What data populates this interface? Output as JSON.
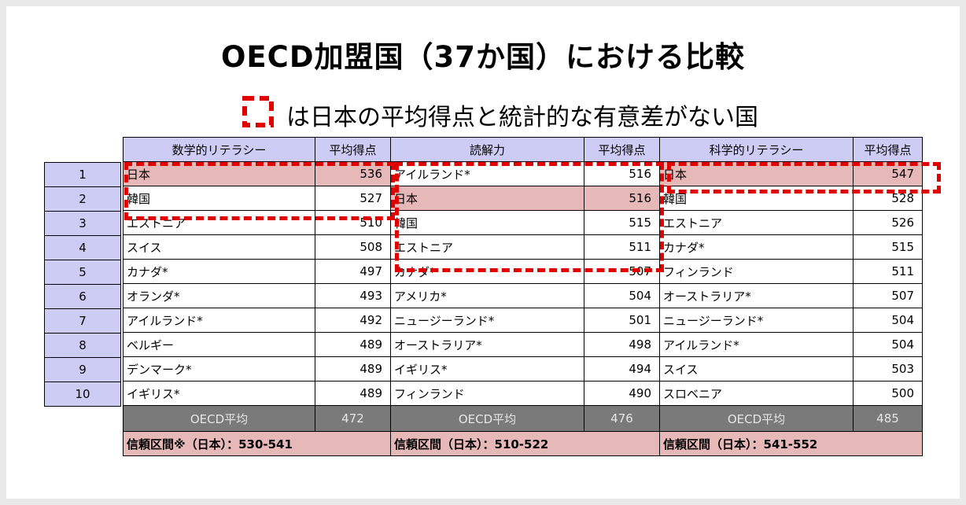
{
  "title": "OECD加盟国（37か国）における比較",
  "legend_text": "は日本の平均得点と統計的な有意差がない国",
  "colors": {
    "header": "#ccccf5",
    "highlight": "#e6b8b7",
    "average": "#7a7a7a",
    "dash": "#e00000"
  },
  "ranks": [
    "1",
    "2",
    "3",
    "4",
    "5",
    "6",
    "7",
    "8",
    "9",
    "10"
  ],
  "columns": [
    {
      "header": "数学的リテラシー",
      "score_header": "平均得点",
      "rows": [
        {
          "name": "日本",
          "score": "536"
        },
        {
          "name": "韓国",
          "score": "527"
        },
        {
          "name": "エストニア",
          "score": "510"
        },
        {
          "name": "スイス",
          "score": "508"
        },
        {
          "name": "カナダ*",
          "score": "497"
        },
        {
          "name": "オランダ*",
          "score": "493"
        },
        {
          "name": "アイルランド*",
          "score": "492"
        },
        {
          "name": "ベルギー",
          "score": "489"
        },
        {
          "name": "デンマーク*",
          "score": "489"
        },
        {
          "name": "イギリス*",
          "score": "489"
        }
      ],
      "avg_label": "OECD平均",
      "avg_score": "472",
      "ci": "信頼区間※（日本）：530-541"
    },
    {
      "header": "読解力",
      "score_header": "平均得点",
      "rows": [
        {
          "name": "アイルランド*",
          "score": "516"
        },
        {
          "name": "日本",
          "score": "516"
        },
        {
          "name": "韓国",
          "score": "515"
        },
        {
          "name": "エストニア",
          "score": "511"
        },
        {
          "name": "カナダ*",
          "score": "507"
        },
        {
          "name": "アメリカ*",
          "score": "504"
        },
        {
          "name": "ニュージーランド*",
          "score": "501"
        },
        {
          "name": "オーストラリア*",
          "score": "498"
        },
        {
          "name": "イギリス*",
          "score": "494"
        },
        {
          "name": "フィンランド",
          "score": "490"
        }
      ],
      "avg_label": "OECD平均",
      "avg_score": "476",
      "ci": "信頼区間（日本）：510-522"
    },
    {
      "header": "科学的リテラシー",
      "score_header": "平均得点",
      "rows": [
        {
          "name": "日本",
          "score": "547"
        },
        {
          "name": "韓国",
          "score": "528"
        },
        {
          "name": "エストニア",
          "score": "526"
        },
        {
          "name": "カナダ*",
          "score": "515"
        },
        {
          "name": "フィンランド",
          "score": "511"
        },
        {
          "name": "オーストラリア*",
          "score": "507"
        },
        {
          "name": "ニュージーランド*",
          "score": "504"
        },
        {
          "name": "アイルランド*",
          "score": "504"
        },
        {
          "name": "スイス",
          "score": "503"
        },
        {
          "name": "スロベニア",
          "score": "500"
        }
      ],
      "avg_label": "OECD平均",
      "avg_score": "485",
      "ci": "信頼区間（日本）：541-552"
    }
  ]
}
